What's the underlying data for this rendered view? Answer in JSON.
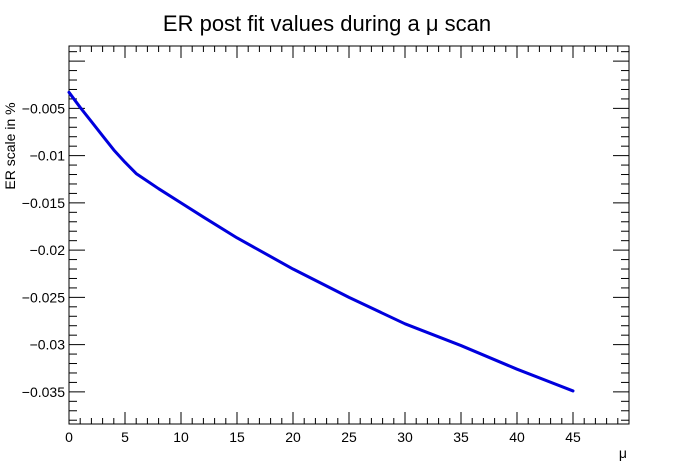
{
  "chart_data": {
    "type": "line",
    "title": "ER post fit values during a μ scan",
    "xlabel": "μ",
    "ylabel": "ER scale  in %",
    "xlim": [
      0,
      50
    ],
    "ylim": [
      -0.0384,
      0.0016
    ],
    "x_ticks": [
      0,
      5,
      10,
      15,
      20,
      25,
      30,
      35,
      40,
      45
    ],
    "x_tick_labels": [
      "0",
      "5",
      "10",
      "15",
      "20",
      "25",
      "30",
      "35",
      "40",
      "45"
    ],
    "y_ticks": [
      -0.005,
      -0.01,
      -0.015,
      -0.02,
      -0.025,
      -0.03,
      -0.035
    ],
    "y_tick_labels": [
      "−0.005",
      "−0.01",
      "−0.015",
      "−0.02",
      "−0.025",
      "−0.03",
      "−0.035"
    ],
    "grid": false,
    "legend": "none",
    "series": [
      {
        "color": "#0000dd",
        "x": [
          0,
          1,
          2,
          3,
          4,
          5,
          6,
          7,
          8,
          10,
          12,
          15,
          20,
          25,
          30,
          35,
          40,
          45
        ],
        "y": [
          -0.0033,
          -0.0049,
          -0.0064,
          -0.0079,
          -0.0094,
          -0.0107,
          -0.0119,
          -0.0127,
          -0.0135,
          -0.015,
          -0.0165,
          -0.0187,
          -0.022,
          -0.025,
          -0.0278,
          -0.0301,
          -0.0326,
          -0.0349
        ]
      }
    ]
  }
}
